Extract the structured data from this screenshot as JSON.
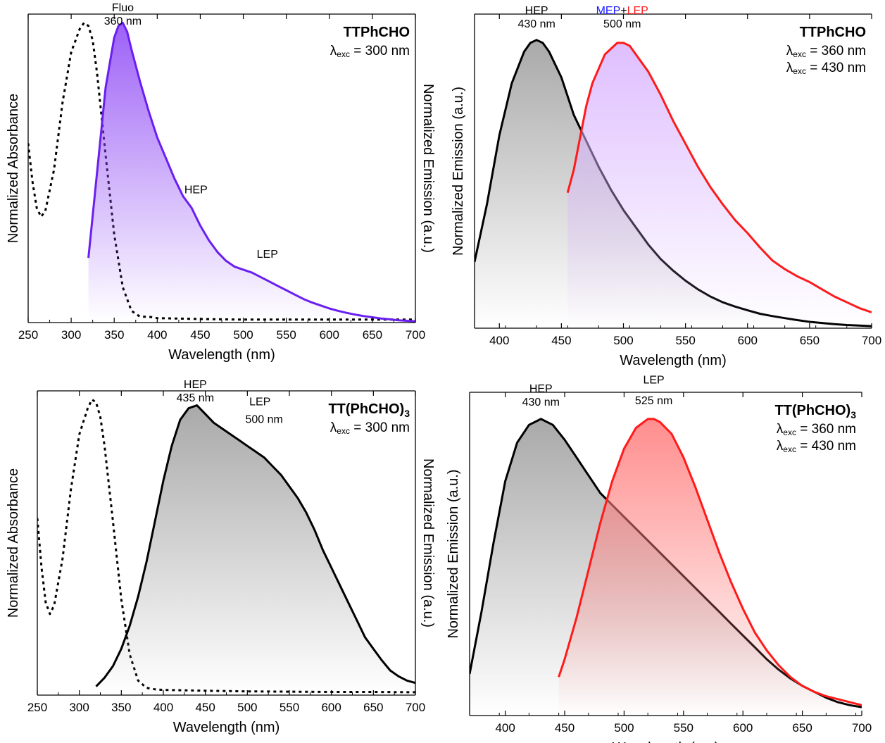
{
  "chart_data": [
    {
      "type": "line",
      "panel": "top-left",
      "compound": "TTPhCHO",
      "excitation": {
        "prefix": "λ",
        "sub": "exc",
        "value": " = 300 nm",
        "color": "#7a2cf0"
      },
      "xlabel": "Wavelength (nm)",
      "ylabel_left": "Normalized Absorbance",
      "ylabel_right": "Normalized Emission (a.u.)",
      "xlim": [
        250,
        700
      ],
      "ylim": [
        0,
        1.05
      ],
      "xticks": [
        "250",
        "300",
        "350",
        "400",
        "450",
        "500",
        "550",
        "600",
        "650",
        "700"
      ],
      "annotations": [
        {
          "lines": [
            "Fluo",
            "360 nm"
          ],
          "x": 360,
          "y": 1.06,
          "color": "#000000"
        },
        {
          "lines": [
            "HEP"
          ],
          "x": 445,
          "y": 0.44,
          "color": "#000000"
        },
        {
          "lines": [
            "LEP"
          ],
          "x": 528,
          "y": 0.22,
          "color": "#000000"
        }
      ],
      "series": [
        {
          "role": "absorbance",
          "style": "dotted",
          "color": "#000000",
          "fill": null,
          "x": [
            250,
            255,
            260,
            265,
            270,
            280,
            290,
            300,
            310,
            315,
            320,
            325,
            330,
            340,
            350,
            360,
            370,
            380,
            390,
            400,
            450,
            500,
            550,
            600,
            650,
            700
          ],
          "y": [
            0.61,
            0.48,
            0.39,
            0.36,
            0.38,
            0.52,
            0.75,
            0.92,
            1.0,
            1.02,
            1.01,
            0.96,
            0.85,
            0.57,
            0.3,
            0.12,
            0.04,
            0.02,
            0.02,
            0.015,
            0.012,
            0.01,
            0.01,
            0.01,
            0.01,
            0.01
          ]
        },
        {
          "role": "emission",
          "style": "solid",
          "color": "#6a1ff0",
          "fill": "#8c45f5",
          "x": [
            320,
            330,
            340,
            350,
            355,
            360,
            365,
            370,
            380,
            390,
            400,
            410,
            420,
            430,
            440,
            450,
            460,
            470,
            480,
            490,
            500,
            510,
            520,
            530,
            540,
            550,
            560,
            570,
            580,
            590,
            600,
            610,
            620,
            630,
            640,
            650,
            660,
            670,
            680,
            690,
            700
          ],
          "y": [
            0.22,
            0.51,
            0.8,
            0.97,
            1.01,
            1.02,
            0.99,
            0.93,
            0.82,
            0.72,
            0.63,
            0.56,
            0.49,
            0.43,
            0.39,
            0.33,
            0.28,
            0.24,
            0.21,
            0.19,
            0.18,
            0.17,
            0.155,
            0.14,
            0.125,
            0.11,
            0.095,
            0.08,
            0.068,
            0.058,
            0.048,
            0.04,
            0.033,
            0.027,
            0.022,
            0.018,
            0.014,
            0.011,
            0.008,
            0.006,
            0.004
          ]
        }
      ]
    },
    {
      "type": "line",
      "panel": "top-right",
      "compound": "TTPhCHO",
      "excitation_lines": [
        {
          "prefix": "λ",
          "sub": "exc",
          "value": " = 360 nm",
          "color": "#000000"
        },
        {
          "prefix": "λ",
          "sub": "exc",
          "value": " = 430 nm",
          "color": "#ff1a1a"
        }
      ],
      "xlabel": "Wavelength (nm)",
      "ylabel_left": "Normalized Emission (a.u.)",
      "xlim": [
        380,
        700
      ],
      "ylim": [
        0,
        1.09
      ],
      "xticks": [
        "400",
        "450",
        "500",
        "550",
        "600",
        "650",
        "700"
      ],
      "annotations": [
        {
          "lines": [
            "HEP",
            "430 nm"
          ],
          "x": 430,
          "y": 1.09,
          "color": "#000000"
        },
        {
          "parts": [
            {
              "text": "MEP",
              "color": "#1a1aff"
            },
            {
              "text": "+",
              "color": "#000000"
            },
            {
              "text": "LEP",
              "color": "#ff1a1a"
            }
          ],
          "lines": [
            "500 nm"
          ],
          "x": 499,
          "y": 1.09,
          "color": "#000000"
        }
      ],
      "series": [
        {
          "role": "emission 360",
          "style": "solid",
          "color": "#000000",
          "fill": "#9a9a9a",
          "x": [
            380,
            390,
            400,
            410,
            420,
            425,
            430,
            435,
            440,
            450,
            460,
            470,
            480,
            490,
            500,
            510,
            520,
            530,
            540,
            550,
            560,
            570,
            580,
            590,
            600,
            610,
            620,
            630,
            640,
            650,
            660,
            670,
            680,
            690,
            700
          ],
          "y": [
            0.23,
            0.43,
            0.67,
            0.85,
            0.96,
            0.99,
            1.0,
            0.99,
            0.96,
            0.87,
            0.74,
            0.65,
            0.56,
            0.48,
            0.41,
            0.35,
            0.29,
            0.24,
            0.2,
            0.165,
            0.135,
            0.11,
            0.09,
            0.075,
            0.062,
            0.05,
            0.042,
            0.035,
            0.028,
            0.022,
            0.018,
            0.014,
            0.011,
            0.009,
            0.007
          ]
        },
        {
          "role": "emission 430",
          "style": "solid",
          "color": "#ff1a1a",
          "fill": "#d9b3ff",
          "x": [
            455,
            460,
            465,
            470,
            475,
            480,
            485,
            490,
            495,
            500,
            505,
            510,
            520,
            530,
            540,
            550,
            560,
            570,
            580,
            590,
            600,
            610,
            620,
            630,
            640,
            650,
            660,
            670,
            680,
            690,
            700
          ],
          "y": [
            0.47,
            0.55,
            0.66,
            0.77,
            0.85,
            0.9,
            0.95,
            0.97,
            0.99,
            0.99,
            0.98,
            0.95,
            0.89,
            0.81,
            0.72,
            0.64,
            0.56,
            0.49,
            0.43,
            0.375,
            0.33,
            0.28,
            0.235,
            0.205,
            0.18,
            0.16,
            0.135,
            0.11,
            0.09,
            0.07,
            0.055
          ]
        }
      ]
    },
    {
      "type": "line",
      "panel": "bottom-left",
      "compound": "TT(PhCHO)",
      "compound_sub": "3",
      "excitation": {
        "prefix": "λ",
        "sub": "exc",
        "value": " = 300 nm",
        "color": "#000000"
      },
      "xlabel": "Wavelength (nm)",
      "ylabel_left": "Normalized Absorbance",
      "ylabel_right": "Normalized Emission (a.u.)",
      "xlim": [
        250,
        700
      ],
      "ylim": [
        0,
        1.05
      ],
      "xticks": [
        "250",
        "300",
        "350",
        "400",
        "450",
        "500",
        "550",
        "600",
        "650",
        "700"
      ],
      "annotations": [
        {
          "lines": [
            "HEP",
            "435 nm"
          ],
          "x": 438,
          "y": 1.06,
          "color": "#000000"
        },
        {
          "lines": [
            "LEP"
          ],
          "x": 515,
          "y": 1.0,
          "color": "#ff1a1a"
        },
        {
          "lines": [
            "500 nm"
          ],
          "x": 520,
          "y": 0.94,
          "color": "#000000"
        }
      ],
      "series": [
        {
          "role": "absorbance",
          "style": "dotted",
          "color": "#000000",
          "fill": null,
          "x": [
            250,
            255,
            260,
            265,
            270,
            280,
            290,
            300,
            310,
            315,
            320,
            325,
            330,
            340,
            350,
            360,
            370,
            380,
            390,
            400,
            450,
            500,
            550,
            600,
            650,
            700
          ],
          "y": [
            0.61,
            0.44,
            0.32,
            0.28,
            0.31,
            0.47,
            0.71,
            0.9,
            0.99,
            1.02,
            1.01,
            0.96,
            0.86,
            0.6,
            0.33,
            0.14,
            0.05,
            0.025,
            0.02,
            0.018,
            0.015,
            0.013,
            0.012,
            0.011,
            0.011,
            0.01
          ]
        },
        {
          "role": "emission",
          "style": "solid",
          "color": "#000000",
          "fill": "#9a9a9a",
          "x": [
            320,
            330,
            340,
            350,
            360,
            370,
            380,
            390,
            400,
            410,
            420,
            430,
            440,
            450,
            460,
            470,
            480,
            490,
            500,
            510,
            520,
            530,
            540,
            550,
            560,
            570,
            580,
            590,
            600,
            610,
            620,
            630,
            640,
            650,
            660,
            670,
            680,
            690,
            700
          ],
          "y": [
            0.03,
            0.06,
            0.1,
            0.16,
            0.24,
            0.34,
            0.46,
            0.6,
            0.74,
            0.86,
            0.95,
            0.99,
            1.0,
            0.97,
            0.94,
            0.92,
            0.9,
            0.88,
            0.86,
            0.84,
            0.82,
            0.79,
            0.76,
            0.72,
            0.68,
            0.63,
            0.57,
            0.5,
            0.44,
            0.38,
            0.32,
            0.26,
            0.2,
            0.16,
            0.12,
            0.085,
            0.065,
            0.05,
            0.042
          ]
        }
      ]
    },
    {
      "type": "line",
      "panel": "bottom-right",
      "compound": "TT(PhCHO)",
      "compound_sub": "3",
      "excitation_lines": [
        {
          "prefix": "λ",
          "sub": "exc",
          "value": " = 360 nm",
          "color": "#000000"
        },
        {
          "prefix": "λ",
          "sub": "exc",
          "value": " = 430 nm",
          "color": "#ff1a1a"
        }
      ],
      "xlabel": "Wavelength (nm)",
      "ylabel_left": "Normalized Emission (a.u.)",
      "xlim": [
        370,
        700
      ],
      "ylim": [
        0,
        1.09
      ],
      "xticks": [
        "400",
        "450",
        "500",
        "550",
        "600",
        "650",
        "700"
      ],
      "annotations": [
        {
          "lines": [
            "HEP",
            "430 nm"
          ],
          "x": 430,
          "y": 1.09,
          "color": "#000000"
        },
        {
          "lines": [
            "LEP"
          ],
          "x": 525,
          "y": 1.12,
          "color": "#ff1a1a"
        },
        {
          "lines": [
            "525 nm"
          ],
          "x": 525,
          "y": 1.05,
          "color": "#000000"
        }
      ],
      "series": [
        {
          "role": "emission 360",
          "style": "solid",
          "color": "#000000",
          "fill": "#9a9a9a",
          "x": [
            370,
            380,
            390,
            400,
            410,
            420,
            430,
            440,
            450,
            460,
            470,
            480,
            490,
            500,
            510,
            520,
            530,
            540,
            550,
            560,
            570,
            580,
            590,
            600,
            610,
            620,
            630,
            640,
            650,
            660,
            670,
            680,
            690,
            700
          ],
          "y": [
            0.14,
            0.35,
            0.58,
            0.79,
            0.92,
            0.98,
            1.0,
            0.98,
            0.93,
            0.87,
            0.81,
            0.75,
            0.71,
            0.67,
            0.63,
            0.59,
            0.55,
            0.51,
            0.47,
            0.43,
            0.39,
            0.35,
            0.31,
            0.27,
            0.23,
            0.19,
            0.155,
            0.125,
            0.1,
            0.08,
            0.06,
            0.045,
            0.035,
            0.028
          ]
        },
        {
          "role": "emission 430",
          "style": "solid",
          "color": "#ff1a1a",
          "fill": "#ff7a7a",
          "x": [
            445,
            450,
            460,
            470,
            480,
            490,
            500,
            510,
            520,
            525,
            530,
            540,
            550,
            560,
            570,
            580,
            590,
            600,
            610,
            620,
            630,
            640,
            650,
            660,
            670,
            680,
            690,
            700
          ],
          "y": [
            0.13,
            0.19,
            0.33,
            0.49,
            0.65,
            0.79,
            0.9,
            0.97,
            1.0,
            1.0,
            0.99,
            0.95,
            0.87,
            0.77,
            0.66,
            0.55,
            0.45,
            0.36,
            0.28,
            0.22,
            0.17,
            0.13,
            0.1,
            0.08,
            0.065,
            0.055,
            0.045,
            0.035
          ]
        }
      ]
    }
  ]
}
